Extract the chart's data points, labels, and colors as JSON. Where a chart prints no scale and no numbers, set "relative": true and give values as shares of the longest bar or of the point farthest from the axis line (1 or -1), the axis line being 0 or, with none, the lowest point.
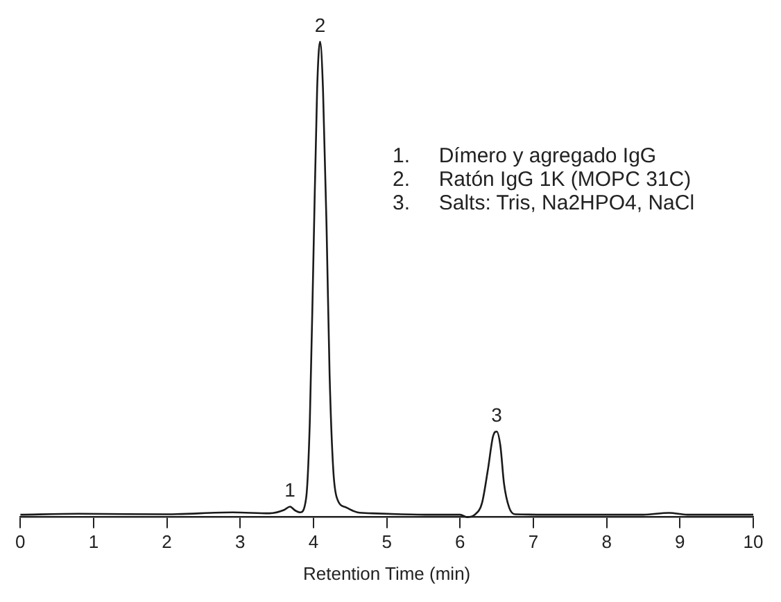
{
  "chart_data": {
    "type": "line",
    "relative": true,
    "xlabel": "Retention Time (min)",
    "xlim": [
      0,
      10
    ],
    "xticks": [
      0,
      1,
      2,
      3,
      4,
      5,
      6,
      7,
      8,
      9,
      10
    ],
    "grid": false,
    "legend": false,
    "marker": "none",
    "line_style": "solid",
    "series": [
      {
        "color": "#1a1a1a",
        "x": [
          0,
          0.8,
          2,
          2.9,
          3.4,
          3.6,
          3.68,
          3.75,
          3.82,
          3.9,
          3.95,
          4.0,
          4.05,
          4.09,
          4.13,
          4.18,
          4.22,
          4.27,
          4.32,
          4.45,
          4.6,
          4.8,
          5.2,
          5.6,
          6.0,
          6.1,
          6.2,
          6.3,
          6.38,
          6.45,
          6.5,
          6.55,
          6.6,
          6.67,
          6.75,
          7.5,
          8.5,
          8.85,
          9.1,
          10
        ],
        "values": [
          0.005,
          0.007,
          0.006,
          0.01,
          0.008,
          0.015,
          0.022,
          0.014,
          0.01,
          0.04,
          0.2,
          0.55,
          0.9,
          1,
          0.9,
          0.6,
          0.3,
          0.1,
          0.04,
          0.02,
          0.01,
          0.008,
          0.006,
          0.005,
          0.005,
          0,
          0.005,
          0.03,
          0.1,
          0.17,
          0.18,
          0.15,
          0.07,
          0.02,
          0.006,
          0.005,
          0.005,
          0.009,
          0.005,
          0.005
        ]
      }
    ],
    "annotations": [
      {
        "text": "1",
        "x": 3.68,
        "y": 0.022
      },
      {
        "text": "2",
        "x": 4.09,
        "y": 1
      },
      {
        "text": "3",
        "x": 6.5,
        "y": 0.18
      },
      "1.     Dímero y agregado IgG",
      "2.     Ratón IgG 1K (MOPC 31C)",
      "3.     Salts: Tris, Na2HPO4, NaCl"
    ]
  }
}
